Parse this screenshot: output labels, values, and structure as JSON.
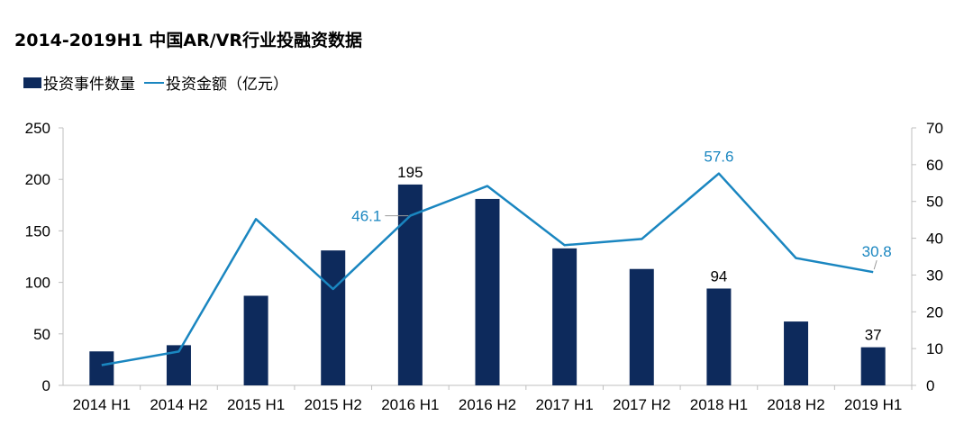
{
  "title": "2014-2019H1 中国AR/VR行业投融资数据",
  "legend": {
    "bar_label": "投资事件数量",
    "line_label": "投资金额（亿元）"
  },
  "colors": {
    "bar": "#0d2a5c",
    "line": "#1a86c0",
    "line_label": "#1a86c0",
    "axis": "#bfbfbf"
  },
  "chart_data": {
    "type": "bar",
    "title": "2014-2019H1 中国AR/VR行业投融资数据",
    "categories": [
      "2014 H1",
      "2014 H2",
      "2015 H1",
      "2015 H2",
      "2016 H1",
      "2016 H2",
      "2017 H1",
      "2017 H2",
      "2018 H1",
      "2018 H2",
      "2019 H1"
    ],
    "series": [
      {
        "name": "投资事件数量",
        "type": "bar",
        "axis": "left",
        "values": [
          33,
          39,
          87,
          131,
          195,
          181,
          133,
          113,
          94,
          62,
          37
        ]
      },
      {
        "name": "投资金额（亿元）",
        "type": "line",
        "axis": "right",
        "values": [
          5.5,
          9.2,
          45.2,
          26.2,
          46.1,
          54.2,
          38.1,
          39.8,
          57.6,
          34.6,
          30.8
        ]
      }
    ],
    "left_axis": {
      "ylim": [
        0,
        250
      ],
      "ticks": [
        "0",
        "50",
        "100",
        "150",
        "200",
        "250"
      ]
    },
    "right_axis": {
      "ylim": [
        0,
        70
      ],
      "ticks": [
        "0",
        "10",
        "20",
        "30",
        "40",
        "50",
        "60",
        "70"
      ]
    },
    "bar_labels": [
      {
        "index": 4,
        "text": "195"
      },
      {
        "index": 8,
        "text": "94"
      },
      {
        "index": 10,
        "text": "37"
      }
    ],
    "line_labels": [
      {
        "index": 4,
        "text": "46.1"
      },
      {
        "index": 8,
        "text": "57.6"
      },
      {
        "index": 10,
        "text": "30.8"
      }
    ],
    "grid": false,
    "legend_position": "top-left"
  }
}
